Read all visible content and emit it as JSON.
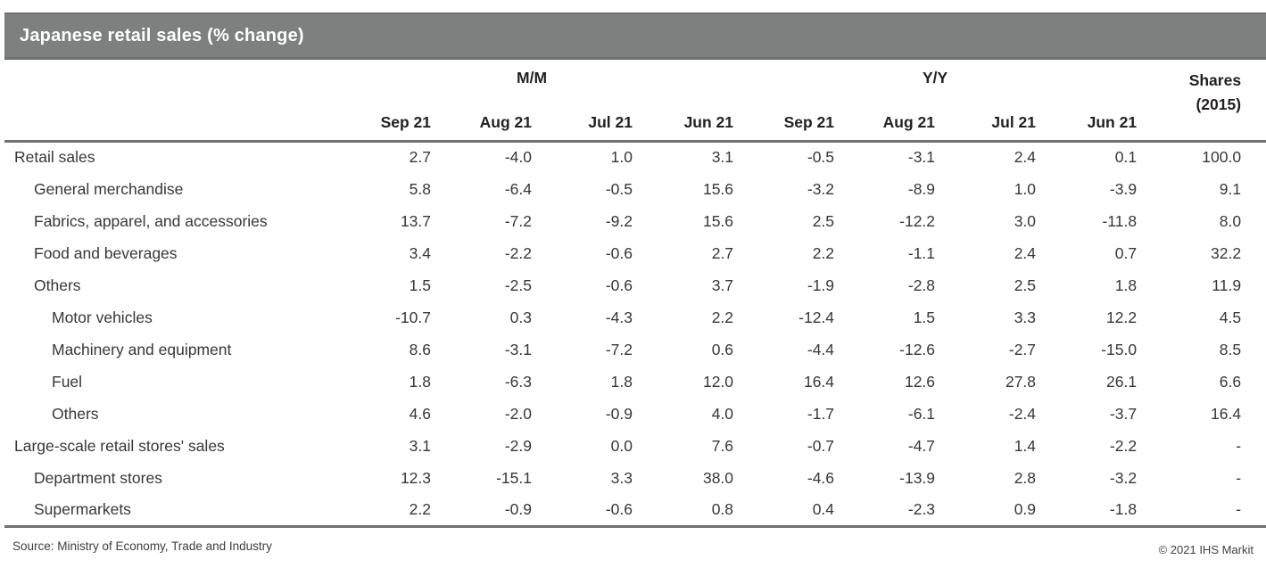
{
  "title_bar": {
    "title": "Japanese retail sales (% change)"
  },
  "chart_data": {
    "type": "table",
    "title": "Japanese retail sales (% change)",
    "group_headers": {
      "mm": "M/M",
      "yy": "Y/Y"
    },
    "shares_header_line1": "Shares",
    "shares_header_line2": "(2015)",
    "month_headers": [
      "Sep 21",
      "Aug 21",
      "Jul 21",
      "Jun 21",
      "Sep 21",
      "Aug 21",
      "Jul 21",
      "Jun 21"
    ],
    "rows": [
      {
        "label": "Retail sales",
        "indent": 0,
        "values": [
          "2.7",
          "-4.0",
          "1.0",
          "3.1",
          "-0.5",
          "-3.1",
          "2.4",
          "0.1",
          "100.0"
        ]
      },
      {
        "label": "General merchandise",
        "indent": 1,
        "values": [
          "5.8",
          "-6.4",
          "-0.5",
          "15.6",
          "-3.2",
          "-8.9",
          "1.0",
          "-3.9",
          "9.1"
        ]
      },
      {
        "label": "Fabrics, apparel, and accessories",
        "indent": 1,
        "values": [
          "13.7",
          "-7.2",
          "-9.2",
          "15.6",
          "2.5",
          "-12.2",
          "3.0",
          "-11.8",
          "8.0"
        ]
      },
      {
        "label": "Food and beverages",
        "indent": 1,
        "values": [
          "3.4",
          "-2.2",
          "-0.6",
          "2.7",
          "2.2",
          "-1.1",
          "2.4",
          "0.7",
          "32.2"
        ]
      },
      {
        "label": "Others",
        "indent": 1,
        "values": [
          "1.5",
          "-2.5",
          "-0.6",
          "3.7",
          "-1.9",
          "-2.8",
          "2.5",
          "1.8",
          "11.9"
        ]
      },
      {
        "label": "Motor vehicles",
        "indent": 2,
        "values": [
          "-10.7",
          "0.3",
          "-4.3",
          "2.2",
          "-12.4",
          "1.5",
          "3.3",
          "12.2",
          "4.5"
        ]
      },
      {
        "label": "Machinery and equipment",
        "indent": 2,
        "values": [
          "8.6",
          "-3.1",
          "-7.2",
          "0.6",
          "-4.4",
          "-12.6",
          "-2.7",
          "-15.0",
          "8.5"
        ]
      },
      {
        "label": "Fuel",
        "indent": 2,
        "values": [
          "1.8",
          "-6.3",
          "1.8",
          "12.0",
          "16.4",
          "12.6",
          "27.8",
          "26.1",
          "6.6"
        ]
      },
      {
        "label": "Others",
        "indent": 2,
        "values": [
          "4.6",
          "-2.0",
          "-0.9",
          "4.0",
          "-1.7",
          "-6.1",
          "-2.4",
          "-3.7",
          "16.4"
        ]
      },
      {
        "label": "Large-scale retail stores' sales",
        "indent": 0,
        "values": [
          "3.1",
          "-2.9",
          "0.0",
          "7.6",
          "-0.7",
          "-4.7",
          "1.4",
          "-2.2",
          "-"
        ]
      },
      {
        "label": "Department stores",
        "indent": 1,
        "values": [
          "12.3",
          "-15.1",
          "3.3",
          "38.0",
          "-4.6",
          "-13.9",
          "2.8",
          "-3.2",
          "-"
        ]
      },
      {
        "label": "Supermarkets",
        "indent": 1,
        "values": [
          "2.2",
          "-0.9",
          "-0.6",
          "0.8",
          "0.4",
          "-2.3",
          "0.9",
          "-1.8",
          "-"
        ]
      }
    ]
  },
  "footer": {
    "source": "Source: Ministry of Economy, Trade and Industry",
    "copyright": "© 2021 IHS Markit"
  },
  "colors": {
    "title_bar_bg": "#7e8080",
    "title_bar_edge": "#6e7070",
    "title_text": "#ffffff",
    "rule": "#6f7071",
    "header_text": "#231f20",
    "body_text": "#373737"
  }
}
